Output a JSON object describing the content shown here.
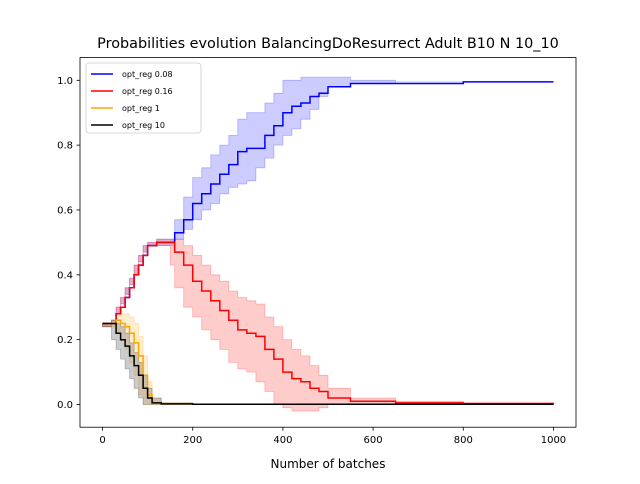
{
  "chart_data": {
    "type": "line",
    "title": "Probabilities evolution BalancingDoResurrect Adult B10 N 10_10",
    "xlabel": "Number of batches",
    "ylabel": "",
    "xlim": [
      -50,
      1050
    ],
    "ylim": [
      -0.07,
      1.07
    ],
    "xticks": [
      0,
      200,
      400,
      600,
      800,
      1000
    ],
    "yticks": [
      0.0,
      0.2,
      0.4,
      0.6,
      0.8,
      1.0
    ],
    "xtick_labels": [
      "0",
      "200",
      "400",
      "600",
      "800",
      "1000"
    ],
    "ytick_labels": [
      "0.0",
      "0.2",
      "0.4",
      "0.6",
      "0.8",
      "1.0"
    ],
    "grid": false,
    "legend_position": "top-left",
    "series": [
      {
        "name": "opt_reg 0.08",
        "color": "#0000ff",
        "fill": "#7f7fff",
        "x": [
          0,
          20,
          30,
          40,
          50,
          60,
          70,
          80,
          90,
          100,
          120,
          150,
          160,
          180,
          200,
          220,
          240,
          260,
          280,
          300,
          320,
          340,
          360,
          380,
          400,
          420,
          440,
          460,
          480,
          500,
          550,
          650,
          800,
          1000
        ],
        "y": [
          0.25,
          0.25,
          0.28,
          0.3,
          0.33,
          0.36,
          0.4,
          0.43,
          0.46,
          0.49,
          0.5,
          0.5,
          0.53,
          0.57,
          0.62,
          0.65,
          0.68,
          0.71,
          0.74,
          0.78,
          0.79,
          0.79,
          0.83,
          0.86,
          0.9,
          0.92,
          0.93,
          0.95,
          0.96,
          0.98,
          0.99,
          0.99,
          0.995,
          0.995
        ],
        "lower": [
          0.25,
          0.24,
          0.26,
          0.28,
          0.31,
          0.34,
          0.37,
          0.4,
          0.44,
          0.47,
          0.49,
          0.49,
          0.49,
          0.51,
          0.54,
          0.57,
          0.6,
          0.62,
          0.65,
          0.67,
          0.68,
          0.69,
          0.73,
          0.76,
          0.8,
          0.83,
          0.85,
          0.88,
          0.91,
          0.95,
          0.98,
          0.99,
          0.995,
          0.995
        ],
        "upper": [
          0.25,
          0.26,
          0.3,
          0.33,
          0.36,
          0.39,
          0.43,
          0.46,
          0.49,
          0.5,
          0.51,
          0.51,
          0.57,
          0.64,
          0.7,
          0.73,
          0.77,
          0.8,
          0.83,
          0.88,
          0.9,
          0.9,
          0.93,
          0.96,
          1.0,
          1.0,
          1.01,
          1.01,
          1.01,
          1.01,
          1.0,
          0.995,
          0.995,
          0.995
        ]
      },
      {
        "name": "opt_reg 0.16",
        "color": "#ff0000",
        "fill": "#ff7f7f",
        "x": [
          0,
          20,
          30,
          40,
          50,
          60,
          70,
          80,
          90,
          100,
          120,
          150,
          160,
          180,
          200,
          220,
          240,
          260,
          280,
          300,
          320,
          340,
          360,
          380,
          400,
          420,
          440,
          460,
          480,
          500,
          550,
          650,
          800,
          1000
        ],
        "y": [
          0.25,
          0.25,
          0.28,
          0.3,
          0.33,
          0.36,
          0.4,
          0.43,
          0.46,
          0.49,
          0.5,
          0.5,
          0.47,
          0.43,
          0.38,
          0.35,
          0.32,
          0.29,
          0.26,
          0.23,
          0.22,
          0.21,
          0.17,
          0.14,
          0.1,
          0.08,
          0.07,
          0.05,
          0.04,
          0.02,
          0.01,
          0.005,
          0.003,
          0.002
        ],
        "lower": [
          0.25,
          0.24,
          0.26,
          0.28,
          0.31,
          0.34,
          0.37,
          0.4,
          0.44,
          0.47,
          0.49,
          0.49,
          0.43,
          0.36,
          0.3,
          0.27,
          0.23,
          0.2,
          0.17,
          0.13,
          0.11,
          0.1,
          0.07,
          0.04,
          0.0,
          -0.01,
          -0.02,
          -0.02,
          -0.02,
          -0.01,
          0.0,
          0.0,
          0.0,
          0.0
        ],
        "upper": [
          0.25,
          0.26,
          0.3,
          0.33,
          0.36,
          0.39,
          0.43,
          0.46,
          0.49,
          0.5,
          0.51,
          0.51,
          0.51,
          0.49,
          0.46,
          0.43,
          0.4,
          0.38,
          0.35,
          0.33,
          0.32,
          0.31,
          0.27,
          0.24,
          0.2,
          0.17,
          0.15,
          0.12,
          0.09,
          0.05,
          0.02,
          0.01,
          0.005,
          0.004
        ]
      },
      {
        "name": "opt_reg 1",
        "color": "#ffa500",
        "fill": "#ffd27f",
        "x": [
          0,
          20,
          30,
          40,
          50,
          60,
          70,
          80,
          90,
          100,
          110,
          130,
          200,
          400,
          1000
        ],
        "y": [
          0.25,
          0.25,
          0.26,
          0.25,
          0.24,
          0.22,
          0.19,
          0.15,
          0.09,
          0.03,
          0.005,
          0.002,
          0.001,
          0.001,
          0.001
        ],
        "lower": [
          0.25,
          0.24,
          0.24,
          0.22,
          0.2,
          0.17,
          0.13,
          0.09,
          0.03,
          0.0,
          0.0,
          0.0,
          0.0,
          0.0,
          0.0
        ],
        "upper": [
          0.25,
          0.26,
          0.28,
          0.28,
          0.28,
          0.27,
          0.25,
          0.21,
          0.15,
          0.07,
          0.02,
          0.005,
          0.002,
          0.001,
          0.001
        ]
      },
      {
        "name": "opt_reg 10",
        "color": "#000000",
        "fill": "#808080",
        "x": [
          0,
          20,
          30,
          40,
          50,
          60,
          70,
          80,
          90,
          100,
          110,
          130,
          200,
          400,
          1000
        ],
        "y": [
          0.25,
          0.25,
          0.22,
          0.2,
          0.18,
          0.15,
          0.12,
          0.09,
          0.05,
          0.02,
          0.005,
          0.002,
          0.001,
          0.001,
          0.001
        ],
        "lower": [
          0.25,
          0.24,
          0.2,
          0.17,
          0.14,
          0.11,
          0.08,
          0.05,
          0.02,
          0.0,
          0.0,
          0.0,
          0.0,
          0.0,
          0.0
        ],
        "upper": [
          0.25,
          0.26,
          0.25,
          0.24,
          0.22,
          0.19,
          0.16,
          0.13,
          0.09,
          0.05,
          0.02,
          0.005,
          0.002,
          0.001,
          0.001
        ]
      }
    ]
  }
}
